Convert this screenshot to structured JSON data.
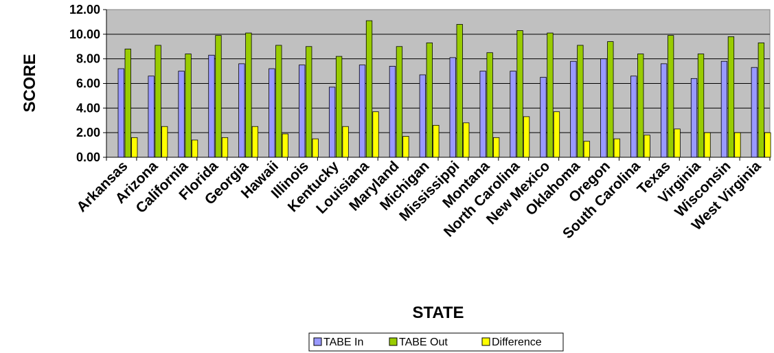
{
  "chart_data": {
    "type": "bar",
    "title": "",
    "xlabel": "STATE",
    "ylabel": "SCORE",
    "ylim": [
      0,
      12
    ],
    "yticks": [
      "0.00",
      "2.00",
      "4.00",
      "6.00",
      "8.00",
      "10.00",
      "12.00"
    ],
    "grid": true,
    "legend_position": "bottom",
    "categories": [
      "Arkansas",
      "Arizona",
      "California",
      "Florida",
      "Georgia",
      "Hawaii",
      "Illinois",
      "Kentucky",
      "Louisiana",
      "Maryland",
      "Michigan",
      "Mississippi",
      "Montana",
      "North Carolina",
      "New Mexico",
      "Oklahoma",
      "Oregon",
      "South Carolina",
      "Texas",
      "Virginia",
      "Wisconsin",
      "West Virginia"
    ],
    "series": [
      {
        "name": "TABE In",
        "color": "#9999FF",
        "values": [
          7.2,
          6.6,
          7.0,
          8.3,
          7.6,
          7.2,
          7.5,
          5.7,
          7.5,
          7.4,
          6.7,
          8.1,
          7.0,
          7.0,
          6.5,
          7.8,
          8.0,
          6.6,
          7.6,
          6.4,
          7.8,
          7.3
        ]
      },
      {
        "name": "TABE Out",
        "color": "#99CC00",
        "values": [
          8.8,
          9.1,
          8.4,
          9.9,
          10.1,
          9.1,
          9.0,
          8.2,
          11.1,
          9.0,
          9.3,
          10.8,
          8.5,
          10.3,
          10.1,
          9.1,
          9.4,
          8.4,
          9.9,
          8.4,
          9.8,
          9.3
        ]
      },
      {
        "name": "Difference",
        "color": "#FFFF00",
        "values": [
          1.6,
          2.5,
          1.4,
          1.6,
          2.5,
          1.9,
          1.5,
          2.5,
          3.7,
          1.7,
          2.6,
          2.8,
          1.6,
          3.3,
          3.7,
          1.3,
          1.5,
          1.8,
          2.3,
          2.0,
          2.0,
          2.0
        ]
      }
    ],
    "plot_background": "#C0C0C0"
  }
}
